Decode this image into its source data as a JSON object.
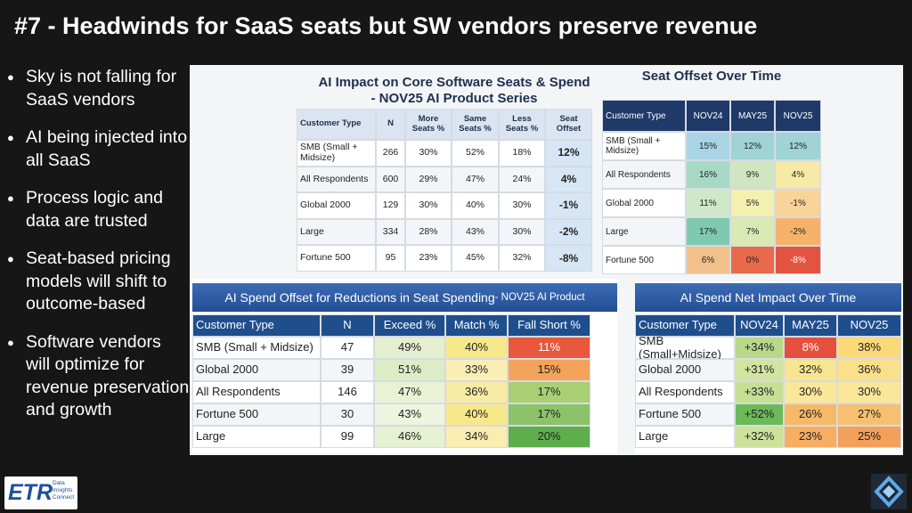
{
  "title": "#7 - Headwinds for SaaS seats but SW vendors preserve revenue",
  "bullets": [
    "Sky is not falling for SaaS vendors",
    "AI being injected into all SaaS",
    "Process logic and data are trusted",
    "Seat-based pricing models will shift to outcome-based",
    "Software vendors will optimize for revenue preservation and growth"
  ],
  "tables": [
    {
      "title": [
        "AI Impact on Core Software Seats & Spend",
        "- NOV25 AI Product Series"
      ],
      "columns": [
        "Customer Type",
        "N",
        "More Seats %",
        "Same Seats %",
        "Less Seats %",
        "Seat Offset"
      ],
      "rows": [
        [
          "SMB (Small + Midsize)",
          "266",
          "30%",
          "52%",
          "18%",
          "12%"
        ],
        [
          "All Respondents",
          "600",
          "29%",
          "47%",
          "24%",
          "4%"
        ],
        [
          "Global 2000",
          "129",
          "30%",
          "40%",
          "30%",
          "-1%"
        ],
        [
          "Large",
          "334",
          "28%",
          "43%",
          "30%",
          "-2%"
        ],
        [
          "Fortune 500",
          "95",
          "23%",
          "45%",
          "32%",
          "-8%"
        ]
      ]
    },
    {
      "title": [
        "Seat Offset Over Time"
      ],
      "columns": [
        "Customer Type",
        "NOV24",
        "MAY25",
        "NOV25"
      ],
      "rows": [
        [
          "SMB (Small + Midsize)",
          "15%",
          "12%",
          "12%"
        ],
        [
          "All Respondents",
          "16%",
          "9%",
          "4%"
        ],
        [
          "Global 2000",
          "11%",
          "5%",
          "-1%"
        ],
        [
          "Large",
          "17%",
          "7%",
          "-2%"
        ],
        [
          "Fortune 500",
          "6%",
          "0%",
          "-8%"
        ]
      ],
      "colors": [
        [
          "#a9d4e6",
          "#9fd3d6",
          "#9fd3d6"
        ],
        [
          "#a6d8c6",
          "#cfe6c0",
          "#f6eaa5"
        ],
        [
          "#cfe9c8",
          "#f3f0b0",
          "#f9d49a"
        ],
        [
          "#7fc9b1",
          "#d9e9b4",
          "#f6b26b"
        ],
        [
          "#f2c08a",
          "#e86a4a",
          "#e4533f"
        ]
      ]
    },
    {
      "title": [
        "AI Spend Offset for Reductions in Seat Spending",
        " - NOV25 AI Product"
      ],
      "columns": [
        "Customer Type",
        "N",
        "Exceed %",
        "Match %",
        "Fall Short %"
      ],
      "rows": [
        [
          "SMB (Small + Midsize)",
          "47",
          "49%",
          "40%",
          "11%"
        ],
        [
          "Global 2000",
          "39",
          "51%",
          "33%",
          "15%"
        ],
        [
          "All Respondents",
          "146",
          "47%",
          "36%",
          "17%"
        ],
        [
          "Fortune 500",
          "30",
          "43%",
          "40%",
          "17%"
        ],
        [
          "Large",
          "99",
          "46%",
          "34%",
          "20%"
        ]
      ],
      "colors": [
        [
          "#e3efcf",
          "#f7e98a",
          "#e8583c"
        ],
        [
          "#dcedc6",
          "#fbeeb5",
          "#f4a35a"
        ],
        [
          "#eaf2d6",
          "#f8eba4",
          "#a9cf75"
        ],
        [
          "#eef4df",
          "#f7e98a",
          "#8cc26a"
        ],
        [
          "#e6f0d2",
          "#faedb0",
          "#5fae4e"
        ]
      ]
    },
    {
      "title": [
        "AI Spend Net Impact Over Time"
      ],
      "columns": [
        "Customer Type",
        "NOV24",
        "MAY25",
        "NOV25"
      ],
      "rows": [
        [
          "SMB (Small+Midsize)",
          "+34%",
          "8%",
          "38%"
        ],
        [
          "Global 2000",
          "+31%",
          "32%",
          "36%"
        ],
        [
          "All Respondents",
          "+33%",
          "30%",
          "30%"
        ],
        [
          "Fortune 500",
          "+52%",
          "26%",
          "27%"
        ],
        [
          "Large",
          "+32%",
          "23%",
          "25%"
        ]
      ],
      "colors": [
        [
          "#b9d98a",
          "#e5503d",
          "#fbd978"
        ],
        [
          "#d3e3a0",
          "#f8e58f",
          "#fbe08a"
        ],
        [
          "#c7de95",
          "#fbe79a",
          "#fbe79a"
        ],
        [
          "#6cb95a",
          "#f7b968",
          "#f6c070"
        ],
        [
          "#cde19a",
          "#f7ae62",
          "#f2a05a"
        ]
      ]
    }
  ],
  "logo": {
    "name": "ETR",
    "tagline": [
      "Data",
      "Insights",
      "Connect"
    ]
  }
}
